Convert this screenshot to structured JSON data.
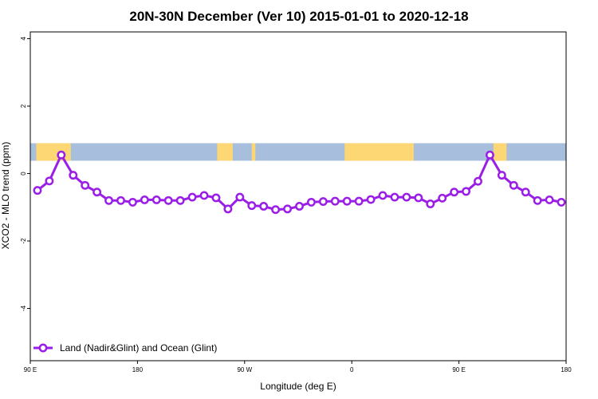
{
  "chart_data": {
    "type": "line",
    "title": "20N-30N December (Ver 10)   2015-01-01 to 2020-12-18",
    "xlabel": "Longitude (deg E)",
    "ylabel": "XCO2 - MLO trend (ppm)",
    "xlim": [
      90,
      540
    ],
    "ylim": [
      -5.55,
      4.2
    ],
    "x_ticks": [
      {
        "value": 90,
        "label": "90 E"
      },
      {
        "value": 180,
        "label": "180"
      },
      {
        "value": 270,
        "label": "90 W"
      },
      {
        "value": 360,
        "label": "0"
      },
      {
        "value": 450,
        "label": "90 E"
      },
      {
        "value": 540,
        "label": "180"
      }
    ],
    "y_ticks": [
      {
        "value": 4,
        "label": "4"
      },
      {
        "value": 2,
        "label": "2"
      },
      {
        "value": 0,
        "label": "0"
      },
      {
        "value": -2,
        "label": "-2"
      },
      {
        "value": -4,
        "label": "-4"
      }
    ],
    "map_strip": {
      "y_range": [
        0.38,
        0.9
      ],
      "ocean_color": "#a7bedd",
      "land_color": "#fcd774",
      "land_segments": [
        [
          95,
          124
        ],
        [
          247,
          260
        ],
        [
          276,
          279
        ],
        [
          354,
          412
        ],
        [
          479,
          490
        ]
      ]
    },
    "series": [
      {
        "name": "Land (Nadir&Glint) and Ocean (Glint)",
        "color": "#9a1ee6",
        "x": [
          96,
          106,
          116,
          126,
          136,
          146,
          156,
          166,
          176,
          186,
          196,
          206,
          216,
          226,
          236,
          246,
          256,
          266,
          276,
          286,
          296,
          306,
          316,
          326,
          336,
          346,
          356,
          366,
          376,
          386,
          396,
          406,
          416,
          426,
          436,
          446,
          456,
          466,
          476,
          486,
          496,
          506,
          516,
          526,
          536
        ],
        "y": [
          -0.5,
          -0.22,
          0.55,
          -0.05,
          -0.35,
          -0.55,
          -0.8,
          -0.8,
          -0.85,
          -0.78,
          -0.78,
          -0.8,
          -0.8,
          -0.7,
          -0.65,
          -0.72,
          -1.05,
          -0.7,
          -0.95,
          -0.97,
          -1.07,
          -1.05,
          -0.97,
          -0.85,
          -0.83,
          -0.82,
          -0.82,
          -0.82,
          -0.77,
          -0.65,
          -0.7,
          -0.7,
          -0.72,
          -0.9,
          -0.73,
          -0.55,
          -0.53,
          -0.23,
          0.55,
          -0.05,
          -0.35,
          -0.55,
          -0.8,
          -0.78,
          -0.85
        ]
      }
    ],
    "legend": {
      "position": "bottom-left",
      "label": "Land (Nadir&Glint) and Ocean (Glint)"
    }
  }
}
